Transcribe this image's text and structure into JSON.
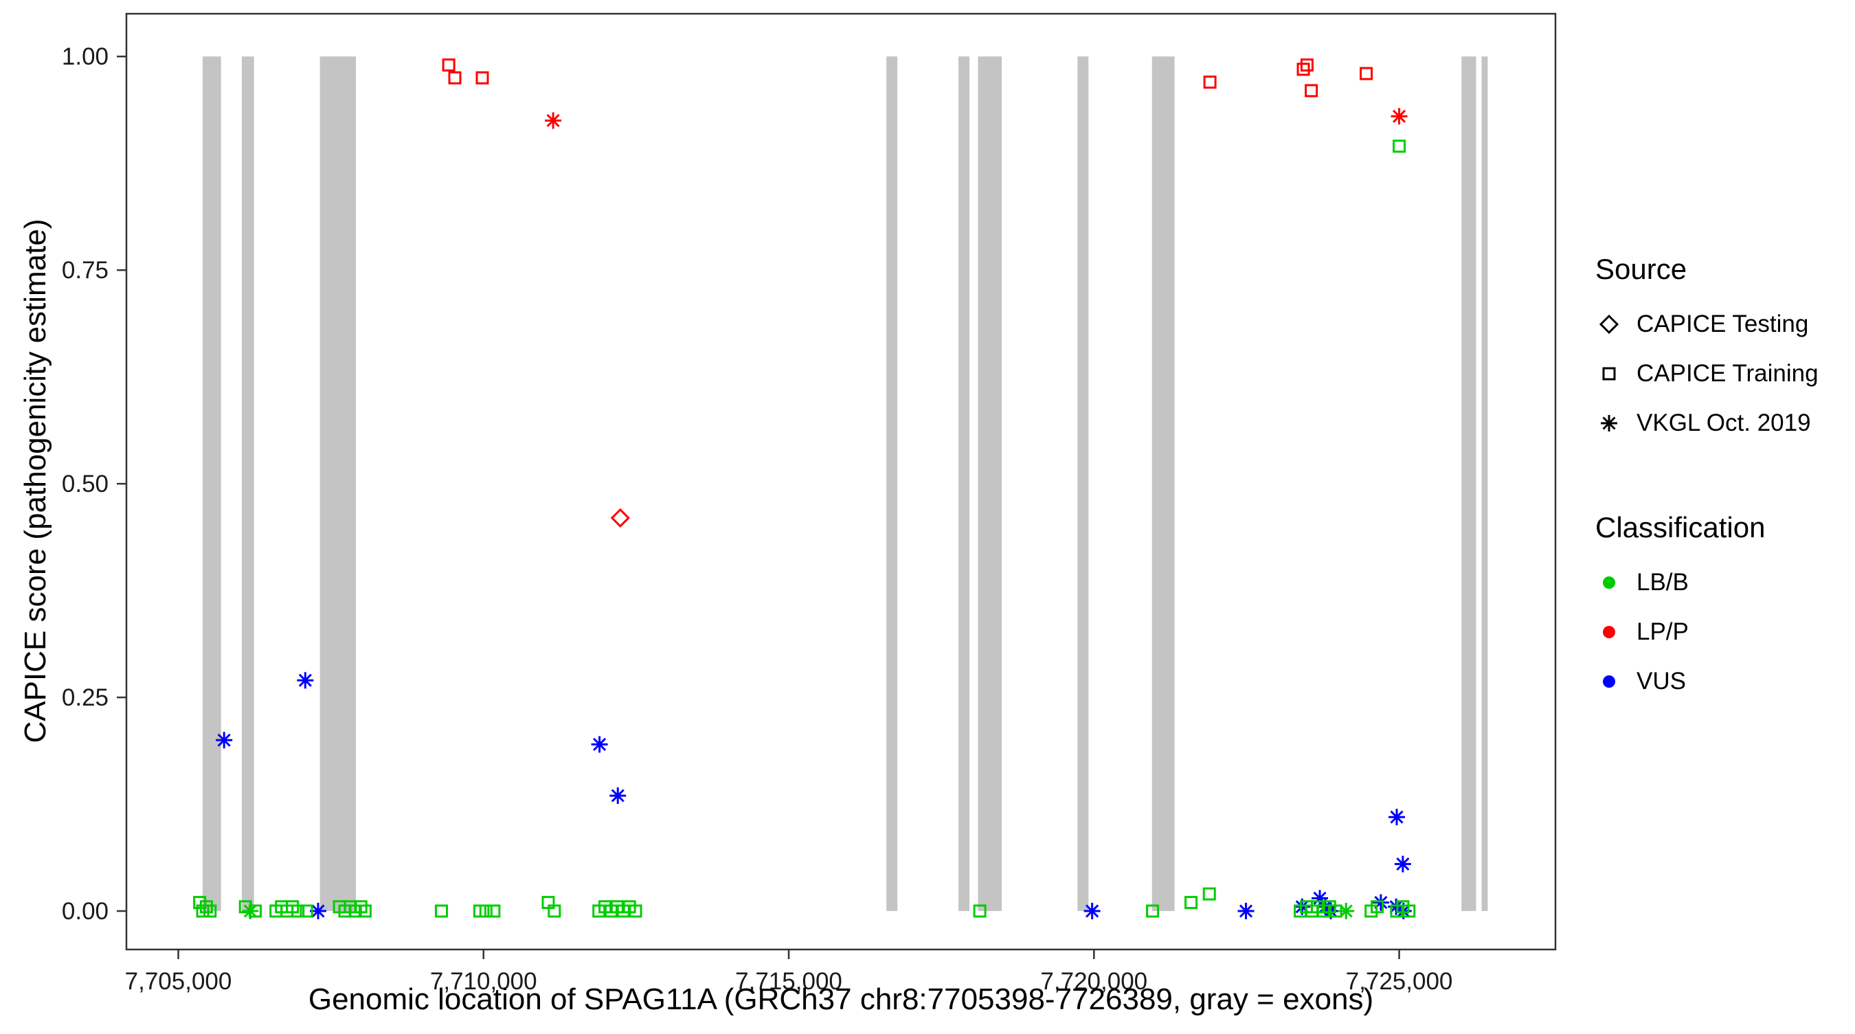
{
  "axes": {
    "x_title": "Genomic location of SPAG11A (GRCh37 chr8:7705398-7726389, gray = exons)",
    "y_title": "CAPICE score (pathogenicity estimate)"
  },
  "legend": {
    "source_title": "Source",
    "source_items": [
      {
        "label": "CAPICE Testing",
        "shape": "diamond"
      },
      {
        "label": "CAPICE Training",
        "shape": "square"
      },
      {
        "label": "VKGL Oct. 2019",
        "shape": "asterisk"
      }
    ],
    "classification_title": "Classification",
    "classification_items": [
      {
        "label": "LB/B",
        "color_key": "LB/B"
      },
      {
        "label": "LP/P",
        "color_key": "LP/P"
      },
      {
        "label": "VUS",
        "color_key": "VUS"
      }
    ]
  },
  "chart_data": {
    "type": "scatter",
    "title": "",
    "xlabel": "Genomic location of SPAG11A (GRCh37 chr8:7705398-7726389, gray = exons)",
    "ylabel": "CAPICE score (pathogenicity estimate)",
    "xlim": [
      7704150,
      7727560
    ],
    "ylim": [
      -0.045,
      1.05
    ],
    "x_ticks": [
      7705000,
      7710000,
      7715000,
      7720000,
      7725000
    ],
    "x_tick_labels": [
      "7,705,000",
      "7,710,000",
      "7,715,000",
      "7,720,000",
      "7,725,000"
    ],
    "y_ticks": [
      0.0,
      0.25,
      0.5,
      0.75,
      1.0
    ],
    "y_tick_labels": [
      "0.00",
      "0.25",
      "0.50",
      "0.75",
      "1.00"
    ],
    "grid": false,
    "legend_position": "right",
    "exon_color": "#C4C4C4",
    "colors": {
      "LB/B": "#00CD00",
      "LP/P": "#FF0000",
      "VUS": "#0000FF"
    },
    "exons": [
      [
        7705398,
        7705700
      ],
      [
        7706040,
        7706240
      ],
      [
        7707320,
        7707910
      ],
      [
        7716600,
        7716780
      ],
      [
        7717780,
        7717960
      ],
      [
        7718100,
        7718490
      ],
      [
        7719730,
        7719910
      ],
      [
        7720950,
        7721320
      ],
      [
        7726020,
        7726260
      ],
      [
        7726350,
        7726450
      ]
    ],
    "points": [
      {
        "x": 7709430,
        "y": 0.99,
        "source": "training",
        "class": "LP/P"
      },
      {
        "x": 7709530,
        "y": 0.975,
        "source": "training",
        "class": "LP/P"
      },
      {
        "x": 7709980,
        "y": 0.975,
        "source": "training",
        "class": "LP/P"
      },
      {
        "x": 7721900,
        "y": 0.97,
        "source": "training",
        "class": "LP/P"
      },
      {
        "x": 7723430,
        "y": 0.985,
        "source": "training",
        "class": "LP/P"
      },
      {
        "x": 7723490,
        "y": 0.99,
        "source": "training",
        "class": "LP/P"
      },
      {
        "x": 7723560,
        "y": 0.96,
        "source": "training",
        "class": "LP/P"
      },
      {
        "x": 7724460,
        "y": 0.98,
        "source": "training",
        "class": "LP/P"
      },
      {
        "x": 7711140,
        "y": 0.925,
        "source": "vkgl",
        "class": "LP/P"
      },
      {
        "x": 7725000,
        "y": 0.93,
        "source": "vkgl",
        "class": "LP/P"
      },
      {
        "x": 7712240,
        "y": 0.46,
        "source": "testing",
        "class": "LP/P"
      },
      {
        "x": 7725000,
        "y": 0.895,
        "source": "training",
        "class": "LB/B"
      },
      {
        "x": 7705750,
        "y": 0.2,
        "source": "vkgl",
        "class": "VUS"
      },
      {
        "x": 7707080,
        "y": 0.27,
        "source": "vkgl",
        "class": "VUS"
      },
      {
        "x": 7711900,
        "y": 0.195,
        "source": "vkgl",
        "class": "VUS"
      },
      {
        "x": 7712200,
        "y": 0.135,
        "source": "vkgl",
        "class": "VUS"
      },
      {
        "x": 7724960,
        "y": 0.11,
        "source": "vkgl",
        "class": "VUS"
      },
      {
        "x": 7725060,
        "y": 0.055,
        "source": "vkgl",
        "class": "VUS"
      },
      {
        "x": 7707290,
        "y": 0.0,
        "source": "vkgl",
        "class": "VUS"
      },
      {
        "x": 7719970,
        "y": 0.0,
        "source": "vkgl",
        "class": "VUS"
      },
      {
        "x": 7722490,
        "y": 0.0,
        "source": "vkgl",
        "class": "VUS"
      },
      {
        "x": 7723410,
        "y": 0.005,
        "source": "vkgl",
        "class": "VUS"
      },
      {
        "x": 7723700,
        "y": 0.015,
        "source": "vkgl",
        "class": "VUS"
      },
      {
        "x": 7723790,
        "y": 0.005,
        "source": "vkgl",
        "class": "VUS"
      },
      {
        "x": 7723880,
        "y": 0.0,
        "source": "vkgl",
        "class": "VUS"
      },
      {
        "x": 7724700,
        "y": 0.01,
        "source": "vkgl",
        "class": "VUS"
      },
      {
        "x": 7724950,
        "y": 0.005,
        "source": "vkgl",
        "class": "VUS"
      },
      {
        "x": 7725070,
        "y": 0.0,
        "source": "vkgl",
        "class": "VUS"
      },
      {
        "x": 7706180,
        "y": 0.0,
        "source": "vkgl",
        "class": "LB/B"
      },
      {
        "x": 7724130,
        "y": 0.0,
        "source": "vkgl",
        "class": "LB/B"
      },
      {
        "x": 7705350,
        "y": 0.01,
        "source": "training",
        "class": "LB/B"
      },
      {
        "x": 7705400,
        "y": 0.0,
        "source": "training",
        "class": "LB/B"
      },
      {
        "x": 7705460,
        "y": 0.005,
        "source": "training",
        "class": "LB/B"
      },
      {
        "x": 7705520,
        "y": 0.0,
        "source": "training",
        "class": "LB/B"
      },
      {
        "x": 7706100,
        "y": 0.005,
        "source": "training",
        "class": "LB/B"
      },
      {
        "x": 7706260,
        "y": 0.0,
        "source": "training",
        "class": "LB/B"
      },
      {
        "x": 7706600,
        "y": 0.0,
        "source": "training",
        "class": "LB/B"
      },
      {
        "x": 7706690,
        "y": 0.005,
        "source": "training",
        "class": "LB/B"
      },
      {
        "x": 7706780,
        "y": 0.0,
        "source": "training",
        "class": "LB/B"
      },
      {
        "x": 7706870,
        "y": 0.005,
        "source": "training",
        "class": "LB/B"
      },
      {
        "x": 7706960,
        "y": 0.0,
        "source": "training",
        "class": "LB/B"
      },
      {
        "x": 7707100,
        "y": 0.0,
        "source": "training",
        "class": "LB/B"
      },
      {
        "x": 7707640,
        "y": 0.005,
        "source": "training",
        "class": "LB/B"
      },
      {
        "x": 7707730,
        "y": 0.0,
        "source": "training",
        "class": "LB/B"
      },
      {
        "x": 7707820,
        "y": 0.005,
        "source": "training",
        "class": "LB/B"
      },
      {
        "x": 7707900,
        "y": 0.0,
        "source": "training",
        "class": "LB/B"
      },
      {
        "x": 7707990,
        "y": 0.005,
        "source": "training",
        "class": "LB/B"
      },
      {
        "x": 7708060,
        "y": 0.0,
        "source": "training",
        "class": "LB/B"
      },
      {
        "x": 7709310,
        "y": 0.0,
        "source": "training",
        "class": "LB/B"
      },
      {
        "x": 7709940,
        "y": 0.0,
        "source": "training",
        "class": "LB/B"
      },
      {
        "x": 7710040,
        "y": 0.0,
        "source": "training",
        "class": "LB/B"
      },
      {
        "x": 7710170,
        "y": 0.0,
        "source": "training",
        "class": "LB/B"
      },
      {
        "x": 7711060,
        "y": 0.01,
        "source": "training",
        "class": "LB/B"
      },
      {
        "x": 7711160,
        "y": 0.0,
        "source": "training",
        "class": "LB/B"
      },
      {
        "x": 7711890,
        "y": 0.0,
        "source": "training",
        "class": "LB/B"
      },
      {
        "x": 7711990,
        "y": 0.005,
        "source": "training",
        "class": "LB/B"
      },
      {
        "x": 7712090,
        "y": 0.0,
        "source": "training",
        "class": "LB/B"
      },
      {
        "x": 7712190,
        "y": 0.005,
        "source": "training",
        "class": "LB/B"
      },
      {
        "x": 7712290,
        "y": 0.0,
        "source": "training",
        "class": "LB/B"
      },
      {
        "x": 7712390,
        "y": 0.005,
        "source": "training",
        "class": "LB/B"
      },
      {
        "x": 7712490,
        "y": 0.0,
        "source": "training",
        "class": "LB/B"
      },
      {
        "x": 7718130,
        "y": 0.0,
        "source": "training",
        "class": "LB/B"
      },
      {
        "x": 7720960,
        "y": 0.0,
        "source": "training",
        "class": "LB/B"
      },
      {
        "x": 7721590,
        "y": 0.01,
        "source": "training",
        "class": "LB/B"
      },
      {
        "x": 7721890,
        "y": 0.02,
        "source": "training",
        "class": "LB/B"
      },
      {
        "x": 7723380,
        "y": 0.0,
        "source": "training",
        "class": "LB/B"
      },
      {
        "x": 7723480,
        "y": 0.005,
        "source": "training",
        "class": "LB/B"
      },
      {
        "x": 7723570,
        "y": 0.0,
        "source": "training",
        "class": "LB/B"
      },
      {
        "x": 7723660,
        "y": 0.005,
        "source": "training",
        "class": "LB/B"
      },
      {
        "x": 7723760,
        "y": 0.0,
        "source": "training",
        "class": "LB/B"
      },
      {
        "x": 7723860,
        "y": 0.005,
        "source": "training",
        "class": "LB/B"
      },
      {
        "x": 7723960,
        "y": 0.0,
        "source": "training",
        "class": "LB/B"
      },
      {
        "x": 7724540,
        "y": 0.0,
        "source": "training",
        "class": "LB/B"
      },
      {
        "x": 7724640,
        "y": 0.005,
        "source": "training",
        "class": "LB/B"
      },
      {
        "x": 7724960,
        "y": 0.0,
        "source": "training",
        "class": "LB/B"
      },
      {
        "x": 7725060,
        "y": 0.005,
        "source": "training",
        "class": "LB/B"
      },
      {
        "x": 7725160,
        "y": 0.0,
        "source": "training",
        "class": "LB/B"
      }
    ]
  }
}
